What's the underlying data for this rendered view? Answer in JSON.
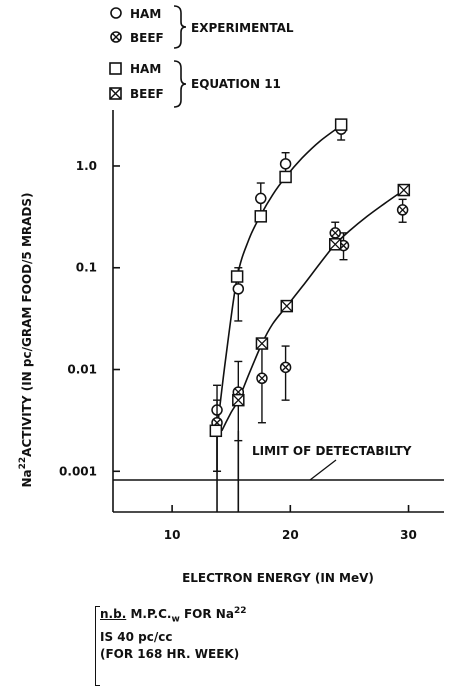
{
  "chart_data": {
    "type": "scatter",
    "xlabel": "ELECTRON ENERGY (IN MeV)",
    "ylabel_sup": "22",
    "ylabel_pre": "Na",
    "ylabel_main": "ACTIVITY (IN pc/GRAM FOOD/5 MRADS)",
    "xlim": [
      5,
      33
    ],
    "ylim_log10": [
      -3.4,
      0.55
    ],
    "y_scale": "log",
    "x_ticks": [
      10,
      20,
      30
    ],
    "x_tick_labels": [
      "10",
      "20",
      "30"
    ],
    "y_ticks": [
      1,
      0.1,
      0.01,
      0.001
    ],
    "y_tick_labels": [
      "1.0",
      "0.1",
      "0.01",
      "0.001"
    ],
    "legend": {
      "group1_label": "EXPERIMENTAL",
      "group2_label": "EQUATION 11",
      "entries": [
        {
          "marker": "circle",
          "label": "HAM"
        },
        {
          "marker": "circle-x",
          "label": "BEEF"
        },
        {
          "marker": "square",
          "label": "HAM"
        },
        {
          "marker": "square-x",
          "label": "BEEF"
        }
      ]
    },
    "annotation": "LIMIT OF DETECTABILTY",
    "detection_limit": 0.001,
    "series": [
      {
        "name": "HAM EXPERIMENTAL",
        "marker": "circle",
        "points": [
          {
            "x": 13.8,
            "y": 0.004,
            "lo": 0.001,
            "hi": 0.007
          },
          {
            "x": 15.6,
            "y": 0.062,
            "lo": 0.03,
            "hi": 0.1
          },
          {
            "x": 17.5,
            "y": 0.48,
            "lo": 0.33,
            "hi": 0.68
          },
          {
            "x": 19.6,
            "y": 1.05,
            "lo": 0.8,
            "hi": 1.35
          },
          {
            "x": 24.3,
            "y": 2.3,
            "lo": 1.8,
            "hi": 2.6
          }
        ]
      },
      {
        "name": "BEEF EXPERIMENTAL",
        "marker": "circle-x",
        "points": [
          {
            "x": 13.8,
            "y": 0.003,
            "lo": 0.001,
            "hi": 0.005
          },
          {
            "x": 15.6,
            "y": 0.006,
            "lo": 0.002,
            "hi": 0.012
          },
          {
            "x": 17.6,
            "y": 0.0082,
            "lo": 0.003,
            "hi": 0.016
          },
          {
            "x": 19.6,
            "y": 0.0105,
            "lo": 0.005,
            "hi": 0.017
          },
          {
            "x": 23.8,
            "y": 0.22,
            "lo": 0.16,
            "hi": 0.28
          },
          {
            "x": 24.5,
            "y": 0.165,
            "lo": 0.12,
            "hi": 0.22
          },
          {
            "x": 29.5,
            "y": 0.37,
            "lo": 0.28,
            "hi": 0.47
          }
        ]
      },
      {
        "name": "HAM EQUATION 11",
        "marker": "square",
        "points": [
          {
            "x": 13.7,
            "y": 0.0025
          },
          {
            "x": 15.5,
            "y": 0.082
          },
          {
            "x": 17.5,
            "y": 0.32
          },
          {
            "x": 19.6,
            "y": 0.78
          },
          {
            "x": 24.3,
            "y": 2.55
          }
        ]
      },
      {
        "name": "BEEF EQUATION 11",
        "marker": "square-x",
        "points": [
          {
            "x": 15.6,
            "y": 0.005
          },
          {
            "x": 17.6,
            "y": 0.018
          },
          {
            "x": 19.7,
            "y": 0.042
          },
          {
            "x": 23.8,
            "y": 0.17
          },
          {
            "x": 29.6,
            "y": 0.58
          }
        ]
      }
    ],
    "curves": [
      {
        "name": "HAM fit",
        "x": [
          13.8,
          14.5,
          15.5,
          16.5,
          17.5,
          18.5,
          19.6,
          21,
          22.5,
          24.3
        ],
        "y": [
          0.0025,
          0.012,
          0.08,
          0.19,
          0.33,
          0.52,
          0.78,
          1.2,
          1.75,
          2.5
        ]
      },
      {
        "name": "BEEF fit",
        "x": [
          14.2,
          15,
          15.6,
          16.5,
          17.6,
          18.5,
          19.7,
          21,
          22.5,
          23.8,
          25,
          26.5,
          28,
          29.6
        ],
        "y": [
          0.0025,
          0.0038,
          0.005,
          0.009,
          0.018,
          0.028,
          0.042,
          0.065,
          0.11,
          0.17,
          0.23,
          0.32,
          0.43,
          0.58
        ]
      }
    ],
    "drop_lines_x": [
      13.8,
      15.6
    ],
    "note": {
      "nb": "n.b.",
      "line1_a": "M.P.C.",
      "line1_sub": "w",
      "line1_b": "FOR Na",
      "line1_sup": "22",
      "line2": "IS 40    pc/cc",
      "line3": "(FOR 168 HR. WEEK)"
    }
  }
}
